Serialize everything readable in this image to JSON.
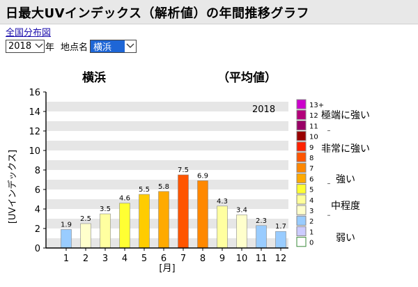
{
  "header": {
    "title": "日最大UVインデックス（解析値）の年間推移グラフ"
  },
  "nav": {
    "map_link": "全国分布図"
  },
  "controls": {
    "year_value": "2018",
    "year_unit": "年",
    "station_label": "地点名",
    "station_value": "横浜"
  },
  "icons": {
    "dropdown": "chevron-down-icon"
  },
  "chart_data": {
    "type": "bar",
    "title_left": "横浜",
    "title_right": "（平均値）",
    "year_label": "2018",
    "ylabel": "[UVインデックス]",
    "xlabel": "[月]",
    "categories": [
      "1",
      "2",
      "3",
      "4",
      "5",
      "6",
      "7",
      "8",
      "9",
      "10",
      "11",
      "12"
    ],
    "values": [
      1.9,
      2.5,
      3.5,
      4.6,
      5.5,
      5.8,
      7.5,
      6.9,
      4.3,
      3.4,
      2.3,
      1.7
    ],
    "value_labels": [
      "1.9",
      "2.5",
      "3.5",
      "4.6",
      "5.5",
      "5.8",
      "7.5",
      "6.9",
      "4.3",
      "3.4",
      "2.3",
      "1.7"
    ],
    "ylim": [
      0,
      16
    ],
    "yticks": [
      "0",
      "2",
      "4",
      "6",
      "8",
      "10",
      "12",
      "14",
      "16"
    ],
    "grid": "horizontal bands",
    "bar_colors": [
      "#99ccff",
      "#ffffcc",
      "#ffffa0",
      "#ffff33",
      "#ffcc00",
      "#ffaa00",
      "#ff5500",
      "#ff8800",
      "#ffffa0",
      "#ffffcc",
      "#99ccff",
      "#99ccff"
    ],
    "legend": {
      "position": "right",
      "levels": [
        {
          "label": "13+",
          "color": "#cc00cc"
        },
        {
          "label": "12",
          "color": "#b3007a"
        },
        {
          "label": "11",
          "color": "#990066"
        },
        {
          "label": "10",
          "color": "#990000"
        },
        {
          "label": "9",
          "color": "#ff2200"
        },
        {
          "label": "8",
          "color": "#ff5500"
        },
        {
          "label": "7",
          "color": "#ff8800"
        },
        {
          "label": "6",
          "color": "#ffaa00"
        },
        {
          "label": "5",
          "color": "#ffff33"
        },
        {
          "label": "4",
          "color": "#ffff99"
        },
        {
          "label": "3",
          "color": "#ffffcc"
        },
        {
          "label": "2",
          "color": "#99ccff"
        },
        {
          "label": "1",
          "color": "#ccccff"
        },
        {
          "label": "0",
          "color": "#ffffff"
        }
      ],
      "categories": [
        "極端に強い",
        "非常に強い",
        "強い",
        "中程度",
        "弱い"
      ]
    }
  }
}
